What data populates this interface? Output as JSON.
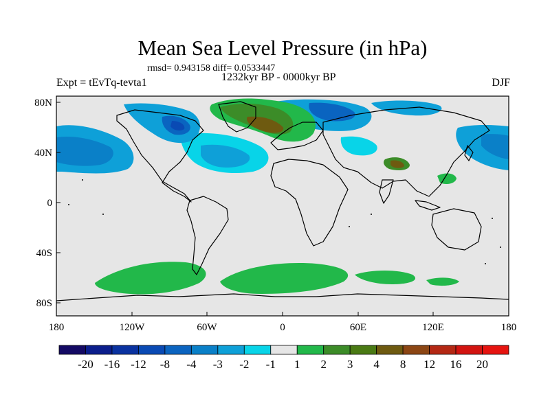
{
  "title": "Mean Sea Level Pressure (in hPa)",
  "stats": {
    "rmsd": "0.943158",
    "diff": "0.0533447",
    "text": "rmsd= 0.943158 diff= 0.0533447"
  },
  "left_label": "Expt = tEvTq-tevta1",
  "center_label": "1232kyr BP - 0000kyr BP",
  "right_label": "DJF",
  "map": {
    "projection": "cylindrical equidistant",
    "lon_range": [
      -180,
      180
    ],
    "lat_range": [
      -90,
      90
    ],
    "background_color": "#e6e6e6",
    "x_ticks": [
      "180",
      "120W",
      "60W",
      "0",
      "60E",
      "120E",
      "180"
    ],
    "y_ticks": [
      "80N",
      "40N",
      "0",
      "40S",
      "80S"
    ]
  },
  "colorbar": {
    "labels": [
      "-20",
      "-16",
      "-12",
      "-8",
      "-4",
      "-3",
      "-2",
      "-1",
      "1",
      "2",
      "3",
      "4",
      "8",
      "12",
      "16",
      "20"
    ],
    "colors": [
      "#140a64",
      "#0b1e8c",
      "#0a32a0",
      "#0a4ab4",
      "#0b64c0",
      "#0a80c8",
      "#0ea0d8",
      "#08d4e8",
      "#e6e6e6",
      "#22b84a",
      "#3c8c28",
      "#4a7a14",
      "#6e5a10",
      "#8c4614",
      "#b42814",
      "#d21410",
      "#e61410"
    ]
  }
}
